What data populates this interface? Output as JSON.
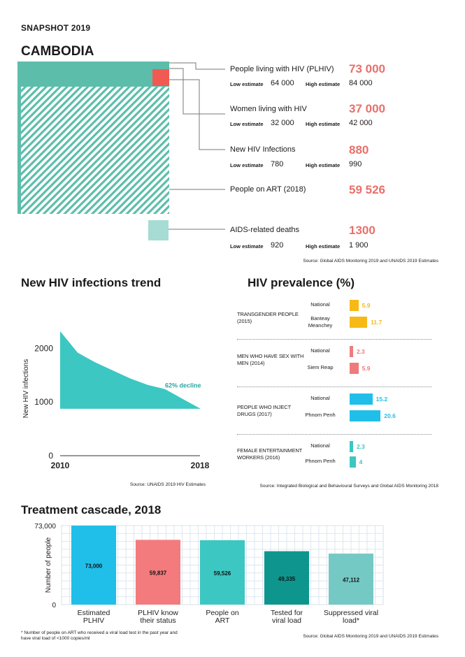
{
  "header": {
    "snapshot": "SNAPSHOT 2019",
    "country": "CAMBODIA"
  },
  "labels": {
    "low": "Low estimate",
    "high": "High estimate"
  },
  "colors": {
    "teal": "#5dbdab",
    "red": "#f15a53",
    "value": "#e8706a",
    "deaths": "#a6dcd4"
  },
  "metrics": [
    {
      "label": "People living with HIV (PLHIV)",
      "value": "73 000",
      "low": "64 000",
      "high": "84 000"
    },
    {
      "label": "Women living with HIV",
      "value": "37 000",
      "low": "32 000",
      "high": "42 000"
    },
    {
      "label": "New HIV Infections",
      "value": "880",
      "low": "780",
      "high": "990"
    },
    {
      "label": "People on ART (2018)",
      "value": "59 526"
    },
    {
      "label": "AIDS-related deaths",
      "value": "1300",
      "low": "920",
      "high": "1 900"
    }
  ],
  "sources": {
    "top": "Source: Global AIDS Monitoring 2019 and UNAIDS 2019 Estimates",
    "trend": "Source: UNAIDS 2019 HIV Estimates",
    "prevalence": "Source: Integrated Biological and Behavioural Surveys and Global AIDS Monitoring 2018",
    "cascade": "Source: Global AIDS Monitoring 2019 and UNAIDS 2019 Estimates"
  },
  "sections": {
    "trend_title": "New HIV infections trend",
    "prevalence_title": "HIV prevalence (%)",
    "cascade_title": "Treatment cascade, 2018"
  },
  "footnote": "* Number of people on ART who received a viral load test in the past year and have viral load of <1000 copies/ml",
  "chart_data": [
    {
      "type": "area",
      "title": "New HIV infections trend",
      "ylabel": "New HIV infections",
      "xlabel": "",
      "x": [
        2010,
        2011,
        2012,
        2013,
        2014,
        2015,
        2016,
        2017,
        2018
      ],
      "values": [
        2320,
        1920,
        1740,
        1590,
        1440,
        1320,
        1240,
        1060,
        880
      ],
      "xlim": [
        2010,
        2018
      ],
      "ylim": [
        0,
        2500
      ],
      "yticks": [
        0,
        1000,
        2000
      ],
      "xticks": [
        "2010",
        "2018"
      ],
      "annotation": "62% decline",
      "color": "#3cc7c2"
    },
    {
      "type": "bar",
      "title": "HIV prevalence (%)",
      "orientation": "horizontal",
      "groups": [
        {
          "name": "TRANSGENDER PEOPLE (2015)",
          "color": "#f6b915",
          "items": [
            {
              "label": "National",
              "value": 5.9
            },
            {
              "label": "Banteay Meanchey",
              "value": 11.7
            }
          ]
        },
        {
          "name": "MEN WHO HAVE SEX WITH MEN (2014)",
          "color": "#ef7b7c",
          "items": [
            {
              "label": "National",
              "value": 2.3
            },
            {
              "label": "Siem Reap",
              "value": 5.9
            }
          ]
        },
        {
          "name": "PEOPLE WHO INJECT DRUGS (2017)",
          "color": "#1fbfea",
          "items": [
            {
              "label": "National",
              "value": 15.2
            },
            {
              "label": "Phnom Penh",
              "value": 20.6
            }
          ]
        },
        {
          "name": "FEMALE ENTERTAINMENT WORKERS (2016)",
          "color": "#3cc7c2",
          "items": [
            {
              "label": "National",
              "value": 2.3
            },
            {
              "label": "Phnom Penh",
              "value": 4
            }
          ]
        }
      ]
    },
    {
      "type": "bar",
      "title": "Treatment cascade, 2018",
      "ylabel": "Number of people",
      "categories": [
        "Estimated PLHIV",
        "PLHIV know their status",
        "People on ART",
        "Tested for viral load",
        "Suppressed viral load*"
      ],
      "values": [
        73000,
        59837,
        59526,
        49335,
        47112
      ],
      "value_labels": [
        "73,000",
        "59,837",
        "59,526",
        "49,335",
        "47,112"
      ],
      "colors": [
        "#1fbfea",
        "#f47b7d",
        "#3cc7c2",
        "#0e968e",
        "#75c9c5"
      ],
      "ylim": [
        0,
        73000
      ],
      "ytick_labels": [
        "0",
        "73,000"
      ]
    }
  ]
}
